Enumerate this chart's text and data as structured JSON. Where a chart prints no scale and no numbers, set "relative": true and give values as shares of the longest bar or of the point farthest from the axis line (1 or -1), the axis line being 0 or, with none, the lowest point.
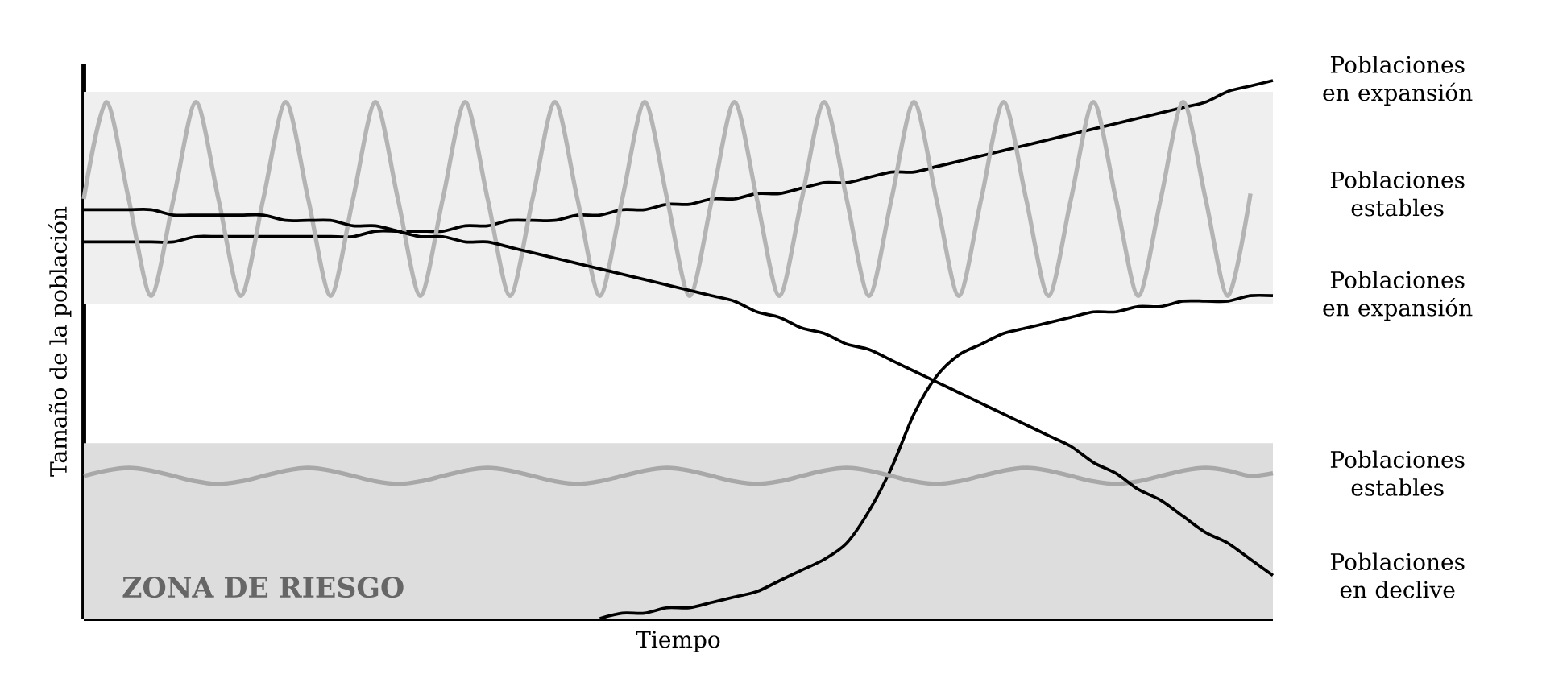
{
  "chart_data": {
    "type": "line",
    "relative": true,
    "legend": "right",
    "xlabel": "Tiempo",
    "ylabel": "Tamaño de la población",
    "categories": [
      null,
      null,
      null,
      null,
      null,
      null,
      null,
      null,
      null,
      null,
      null,
      null,
      null,
      null,
      null,
      null,
      null,
      null,
      null,
      null,
      null,
      null,
      null,
      null,
      null,
      null,
      null,
      null,
      null,
      null,
      null,
      null,
      null,
      null,
      null,
      null,
      null,
      null,
      null,
      null,
      null,
      null,
      null,
      null,
      null,
      null,
      null,
      null,
      null,
      null,
      null,
      null,
      null,
      null
    ],
    "bands": [
      {
        "axis": "y",
        "from": 0.584,
        "to": 0.979,
        "color": "#efefef"
      },
      {
        "axis": "y",
        "from": 0,
        "to": 0.326,
        "color": "#dddddd",
        "label": "ZONA DE RIESGO"
      }
    ],
    "series": [
      {
        "name": "Poblaciones en expansión",
        "color": "#000000",
        "values": [
          0.7,
          0.7,
          0.7,
          0.7,
          0.7,
          0.71,
          0.71,
          0.71,
          0.71,
          0.71,
          0.71,
          0.71,
          0.71,
          0.72,
          0.72,
          0.72,
          0.72,
          0.73,
          0.73,
          0.74,
          0.74,
          0.74,
          0.75,
          0.75,
          0.76,
          0.76,
          0.77,
          0.77,
          0.78,
          0.78,
          0.79,
          0.79,
          0.8,
          0.81,
          0.81,
          0.82,
          0.83,
          0.83,
          0.84,
          0.85,
          0.86,
          0.87,
          0.88,
          0.89,
          0.9,
          0.91,
          0.92,
          0.93,
          0.94,
          0.95,
          0.96,
          0.98,
          0.99,
          1.0
        ]
      },
      {
        "name": "Poblaciones estables",
        "color": "#b4b4b4",
        "values": [
          0.78,
          0.96,
          0.78,
          0.6,
          0.78,
          0.96,
          0.78,
          0.6,
          0.78,
          0.96,
          0.78,
          0.6,
          0.78,
          0.96,
          0.78,
          0.6,
          0.78,
          0.96,
          0.78,
          0.6,
          0.78,
          0.96,
          0.78,
          0.6,
          0.78,
          0.96,
          0.78,
          0.6,
          0.78,
          0.96,
          0.78,
          0.6,
          0.78,
          0.96,
          0.78,
          0.6,
          0.78,
          0.96,
          0.78,
          0.6,
          0.78,
          0.96,
          0.78,
          0.6,
          0.78,
          0.96,
          0.78,
          0.6,
          0.78,
          0.96,
          0.78,
          0.6,
          0.79,
          null
        ]
      },
      {
        "name": "Poblaciones en expansión",
        "color": "#000000",
        "values": [
          null,
          null,
          null,
          null,
          null,
          null,
          null,
          null,
          null,
          null,
          null,
          null,
          null,
          null,
          null,
          null,
          null,
          null,
          null,
          null,
          null,
          null,
          null,
          0,
          0.01,
          0.01,
          0.02,
          0.02,
          0.03,
          0.04,
          0.05,
          0.07,
          0.09,
          0.11,
          0.14,
          0.2,
          0.28,
          0.38,
          0.45,
          0.49,
          0.51,
          0.53,
          0.54,
          0.55,
          0.56,
          0.57,
          0.57,
          0.58,
          0.58,
          0.59,
          0.59,
          0.59,
          0.6,
          0.6
        ]
      },
      {
        "name": "Poblaciones estables",
        "color": "#a8a8a8",
        "values": [
          0.265,
          0.275,
          0.28,
          0.275,
          0.265,
          0.255,
          0.25,
          0.255,
          0.265,
          0.275,
          0.28,
          0.275,
          0.265,
          0.255,
          0.25,
          0.255,
          0.265,
          0.275,
          0.28,
          0.275,
          0.265,
          0.255,
          0.25,
          0.255,
          0.265,
          0.275,
          0.28,
          0.275,
          0.265,
          0.255,
          0.25,
          0.255,
          0.265,
          0.275,
          0.28,
          0.275,
          0.265,
          0.255,
          0.25,
          0.255,
          0.265,
          0.275,
          0.28,
          0.275,
          0.265,
          0.255,
          0.25,
          0.255,
          0.265,
          0.275,
          0.28,
          0.275,
          0.265,
          0.27
        ]
      },
      {
        "name": "Poblaciones en declive",
        "color": "#000000",
        "values": [
          0.76,
          0.76,
          0.76,
          0.76,
          0.75,
          0.75,
          0.75,
          0.75,
          0.75,
          0.74,
          0.74,
          0.74,
          0.73,
          0.73,
          0.72,
          0.71,
          0.71,
          0.7,
          0.7,
          0.69,
          0.68,
          0.67,
          0.66,
          0.65,
          0.64,
          0.63,
          0.62,
          0.61,
          0.6,
          0.59,
          0.57,
          0.56,
          0.54,
          0.53,
          0.51,
          0.5,
          0.48,
          0.46,
          0.44,
          0.42,
          0.4,
          0.38,
          0.36,
          0.34,
          0.32,
          0.29,
          0.27,
          0.24,
          0.22,
          0.19,
          0.16,
          0.14,
          0.11,
          0.08
        ]
      }
    ]
  }
}
